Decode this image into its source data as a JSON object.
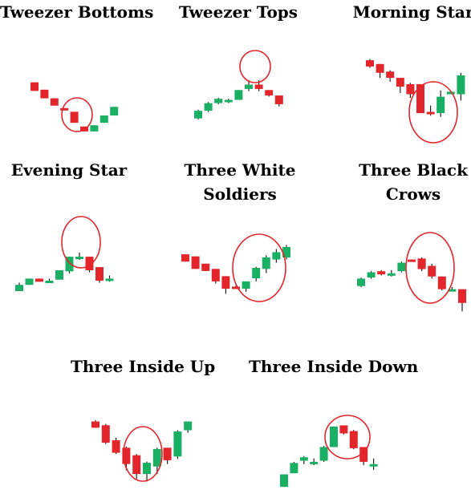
{
  "colors": {
    "bullish": "#19b064",
    "bearish": "#e3262b",
    "wick": "#222222",
    "highlight": "#e3262b"
  },
  "patterns": [
    {
      "title": "Tweezer Bottoms",
      "candles": [
        {
          "o": 78,
          "c": 71,
          "h": 78,
          "l": 71
        },
        {
          "o": 72,
          "c": 65,
          "h": 72,
          "l": 65
        },
        {
          "o": 65,
          "c": 59,
          "h": 65,
          "l": 59
        },
        {
          "o": 57,
          "c": 56,
          "h": 57,
          "l": 56
        },
        {
          "o": 54,
          "c": 45,
          "h": 54,
          "l": 45
        },
        {
          "o": 42,
          "c": 38,
          "h": 42,
          "l": 38
        },
        {
          "o": 38,
          "c": 43,
          "h": 43,
          "l": 38
        },
        {
          "o": 45,
          "c": 51,
          "h": 51,
          "l": 45
        },
        {
          "o": 51,
          "c": 58,
          "h": 58,
          "l": 51
        }
      ]
    },
    {
      "title": "Tweezer Tops",
      "candles": [
        {
          "o": 51,
          "c": 58,
          "h": 59,
          "l": 50
        },
        {
          "o": 58,
          "c": 65,
          "h": 66,
          "l": 57
        },
        {
          "o": 65,
          "c": 69,
          "h": 70,
          "l": 64
        },
        {
          "o": 66,
          "c": 68,
          "h": 69,
          "l": 65
        },
        {
          "o": 68,
          "c": 77,
          "h": 77,
          "l": 68
        },
        {
          "o": 78,
          "c": 82,
          "h": 86,
          "l": 76
        },
        {
          "o": 82,
          "c": 78,
          "h": 86,
          "l": 76
        },
        {
          "o": 77,
          "c": 72,
          "h": 77,
          "l": 71
        },
        {
          "o": 72,
          "c": 64,
          "h": 72,
          "l": 62
        }
      ]
    },
    {
      "title": "Morning Star",
      "candles": [
        {
          "o": 77,
          "c": 72,
          "h": 78,
          "l": 71
        },
        {
          "o": 74,
          "c": 67,
          "h": 74,
          "l": 63
        },
        {
          "o": 68,
          "c": 63,
          "h": 69,
          "l": 60
        },
        {
          "o": 63,
          "c": 56,
          "h": 63,
          "l": 51
        },
        {
          "o": 58,
          "c": 50,
          "h": 59,
          "l": 47
        },
        {
          "o": 58,
          "c": 35,
          "h": 58,
          "l": 35
        },
        {
          "o": 36,
          "c": 35,
          "h": 41,
          "l": 33
        },
        {
          "o": 35,
          "c": 48,
          "h": 53,
          "l": 32
        },
        {
          "o": 50,
          "c": 52,
          "h": 52,
          "l": 50
        },
        {
          "o": 50,
          "c": 65,
          "h": 67,
          "l": 45
        }
      ]
    },
    {
      "title": "Evening Star",
      "candles": [
        {
          "o": 50,
          "c": 56,
          "h": 58,
          "l": 50
        },
        {
          "o": 56,
          "c": 62,
          "h": 62,
          "l": 56
        },
        {
          "o": 62,
          "c": 59,
          "h": 62,
          "l": 59
        },
        {
          "o": 60,
          "c": 60,
          "h": 62,
          "l": 58
        },
        {
          "o": 61,
          "c": 70,
          "h": 70,
          "l": 61
        },
        {
          "o": 69,
          "c": 83,
          "h": 83,
          "l": 67
        },
        {
          "o": 82,
          "c": 83,
          "h": 87,
          "l": 80
        },
        {
          "o": 83,
          "c": 70,
          "h": 83,
          "l": 68
        },
        {
          "o": 73,
          "c": 60,
          "h": 73,
          "l": 58
        },
        {
          "o": 62,
          "c": 62,
          "h": 65,
          "l": 59
        }
      ]
    },
    {
      "title": "Three White Soldiers",
      "candles": [
        {
          "o": 73,
          "c": 66,
          "h": 73,
          "l": 66
        },
        {
          "o": 71,
          "c": 59,
          "h": 71,
          "l": 59
        },
        {
          "o": 64,
          "c": 57,
          "h": 64,
          "l": 57
        },
        {
          "o": 59,
          "c": 47,
          "h": 59,
          "l": 45
        },
        {
          "o": 52,
          "c": 40,
          "h": 52,
          "l": 35
        },
        {
          "o": 42,
          "c": 41,
          "h": 43,
          "l": 40
        },
        {
          "o": 40,
          "c": 47,
          "h": 47,
          "l": 37
        },
        {
          "o": 50,
          "c": 60,
          "h": 61,
          "l": 47
        },
        {
          "o": 59,
          "c": 70,
          "h": 72,
          "l": 55
        },
        {
          "o": 68,
          "c": 75,
          "h": 78,
          "l": 65
        },
        {
          "o": 70,
          "c": 80,
          "h": 82,
          "l": 68
        }
      ]
    },
    {
      "title": "Three Black Crows",
      "candles": [
        {
          "o": 48,
          "c": 55,
          "h": 56,
          "l": 47
        },
        {
          "o": 56,
          "c": 61,
          "h": 62,
          "l": 55
        },
        {
          "o": 62,
          "c": 59,
          "h": 63,
          "l": 58
        },
        {
          "o": 59,
          "c": 60,
          "h": 63,
          "l": 57
        },
        {
          "o": 62,
          "c": 70,
          "h": 71,
          "l": 61
        },
        {
          "o": 73,
          "c": 72,
          "h": 73,
          "l": 71
        },
        {
          "o": 74,
          "c": 64,
          "h": 75,
          "l": 62
        },
        {
          "o": 67,
          "c": 57,
          "h": 69,
          "l": 55
        },
        {
          "o": 57,
          "c": 45,
          "h": 57,
          "l": 44
        },
        {
          "o": 45,
          "c": 45,
          "h": 47,
          "l": 44
        },
        {
          "o": 45,
          "c": 32,
          "h": 45,
          "l": 24
        }
      ]
    },
    {
      "title": "Three Inside Up",
      "candles": [
        {
          "o": 74,
          "c": 69,
          "h": 75,
          "l": 69
        },
        {
          "o": 71,
          "c": 57,
          "h": 72,
          "l": 56
        },
        {
          "o": 59,
          "c": 49,
          "h": 61,
          "l": 48
        },
        {
          "o": 53,
          "c": 40,
          "h": 54,
          "l": 35
        },
        {
          "o": 47,
          "c": 32,
          "h": 48,
          "l": 28
        },
        {
          "o": 32,
          "c": 41,
          "h": 42,
          "l": 26
        },
        {
          "o": 38,
          "c": 52,
          "h": 53,
          "l": 32
        },
        {
          "o": 53,
          "c": 43,
          "h": 53,
          "l": 40
        },
        {
          "o": 46,
          "c": 66,
          "h": 67,
          "l": 44
        },
        {
          "o": 67,
          "c": 74,
          "h": 74,
          "l": 65
        }
      ]
    },
    {
      "title": "Three Inside Down",
      "candles": [
        {
          "o": 33,
          "c": 44,
          "h": 44,
          "l": 33
        },
        {
          "o": 45,
          "c": 54,
          "h": 55,
          "l": 45
        },
        {
          "o": 56,
          "c": 59,
          "h": 60,
          "l": 53
        },
        {
          "o": 54,
          "c": 55,
          "h": 58,
          "l": 52
        },
        {
          "o": 56,
          "c": 68,
          "h": 69,
          "l": 55
        },
        {
          "o": 68,
          "c": 86,
          "h": 86,
          "l": 68
        },
        {
          "o": 87,
          "c": 80,
          "h": 87,
          "l": 79
        },
        {
          "o": 82,
          "c": 67,
          "h": 83,
          "l": 66
        },
        {
          "o": 68,
          "c": 55,
          "h": 68,
          "l": 52
        },
        {
          "o": 53,
          "c": 53,
          "h": 58,
          "l": 48
        }
      ]
    }
  ]
}
